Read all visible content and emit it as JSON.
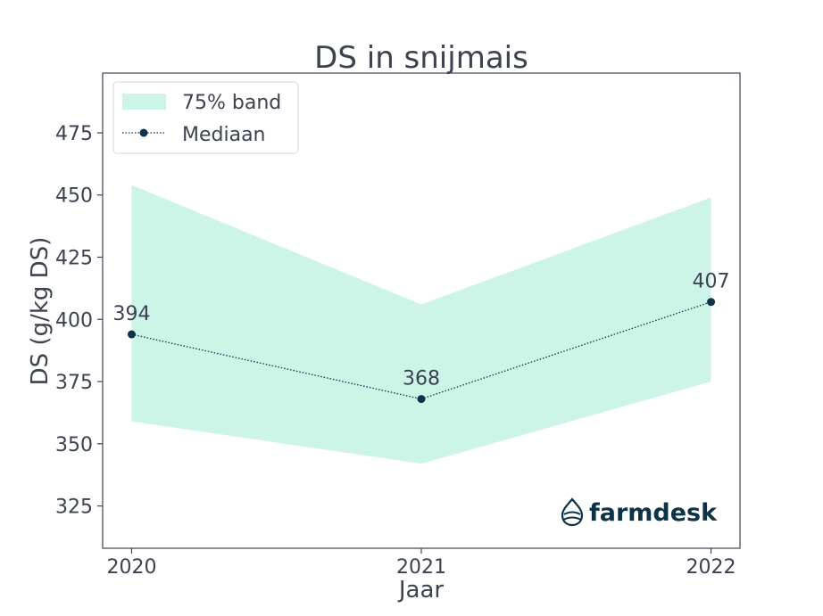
{
  "chart_data": {
    "type": "line",
    "title": "DS in snijmais",
    "xlabel": "Jaar",
    "ylabel": "DS (g/kg DS)",
    "categories": [
      "2020",
      "2021",
      "2022"
    ],
    "yticks": [
      325,
      350,
      375,
      400,
      425,
      450,
      475
    ],
    "ylim": [
      308,
      499
    ],
    "xlim": [
      -0.1,
      2.1
    ],
    "series": [
      {
        "name": "Mediaan",
        "style": "dotted-line-with-markers",
        "color": "#0d3349",
        "values": [
          394,
          368,
          407
        ],
        "labels": [
          "394",
          "368",
          "407"
        ]
      }
    ],
    "band": {
      "name": "75% band",
      "color": "#ccf5e8",
      "lower": [
        359,
        342,
        375
      ],
      "upper": [
        454,
        406,
        449
      ]
    },
    "legend": {
      "placement": "top-left",
      "entries": [
        "75% band",
        "Mediaan"
      ]
    },
    "grid": false
  },
  "logo": {
    "text": "farmdesk",
    "color": "#0d3349"
  }
}
